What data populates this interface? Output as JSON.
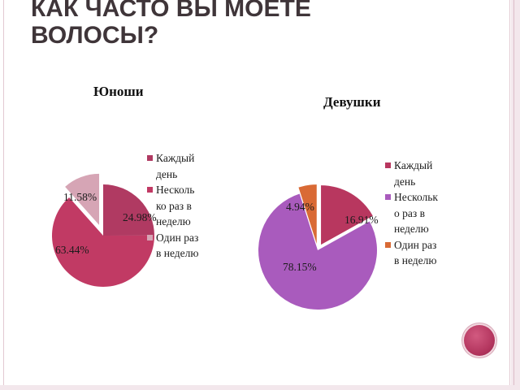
{
  "slide": {
    "title": "Как часто вы моете\nволосы?"
  },
  "chart_data": [
    {
      "type": "pie",
      "title": "Юноши",
      "categories": [
        "Каждый день",
        "Несколько раз в неделю",
        "Один раз в неделю"
      ],
      "values": [
        24.98,
        63.44,
        11.58
      ],
      "value_labels": [
        "24.98%",
        "63.44%",
        "11.58%"
      ],
      "legend_labels": [
        "Каждый\nдень",
        "Несколь\nко раз в\nнеделю",
        "Один раз\nв неделю"
      ],
      "colors": [
        "#b03a62",
        "#c13a64",
        "#d6a5b5"
      ],
      "exploded": [
        false,
        false,
        true
      ],
      "legend_position": "right"
    },
    {
      "type": "pie",
      "title": "Девушки",
      "categories": [
        "Каждый день",
        "Несколько раз в неделю",
        "Один раз в неделю"
      ],
      "values": [
        16.91,
        78.15,
        4.94
      ],
      "value_labels": [
        "16.91%",
        "78.15%",
        "4.94%"
      ],
      "legend_labels": [
        "Каждый\nдень",
        "Нескольк\nо раз в\nнеделю",
        "Один раз\nв неделю"
      ],
      "colors": [
        "#b8375f",
        "#a95bbd",
        "#d96a35"
      ],
      "exploded": [
        true,
        false,
        true
      ],
      "legend_position": "right"
    }
  ]
}
